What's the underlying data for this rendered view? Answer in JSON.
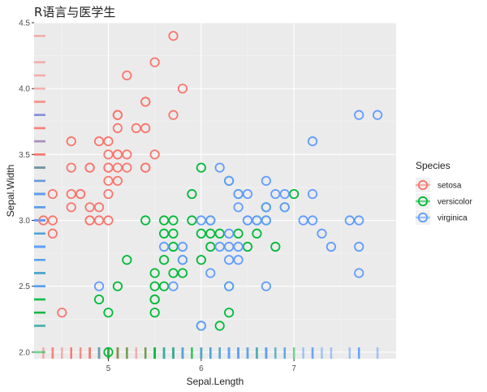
{
  "chart_data": {
    "type": "scatter",
    "title": "R语言与医学生",
    "xlabel": "Sepal.Length",
    "ylabel": "Sepal.Width",
    "xlim": [
      4.2,
      8.1
    ],
    "ylim": [
      1.95,
      4.5
    ],
    "x_ticks": [
      5,
      6,
      7
    ],
    "y_ticks": [
      2.0,
      2.5,
      3.0,
      3.5,
      4.0,
      4.5
    ],
    "x_tick_labels": [
      "5",
      "6",
      "7"
    ],
    "y_tick_labels": [
      "2.0",
      "2.5",
      "3.0",
      "3.5",
      "4.0",
      "4.5"
    ],
    "grid": true,
    "rug": true,
    "legend": {
      "title": "Species",
      "position": "right"
    },
    "colors": {
      "setosa": "#F8766D",
      "versicolor": "#00BA38",
      "virginica": "#619CFF"
    },
    "series": [
      {
        "name": "setosa",
        "points": [
          [
            4.3,
            3.0
          ],
          [
            4.4,
            3.0
          ],
          [
            4.4,
            2.9
          ],
          [
            4.4,
            3.2
          ],
          [
            4.5,
            2.3
          ],
          [
            4.6,
            3.1
          ],
          [
            4.6,
            3.4
          ],
          [
            4.6,
            3.6
          ],
          [
            4.6,
            3.2
          ],
          [
            4.7,
            3.2
          ],
          [
            4.7,
            3.2
          ],
          [
            4.8,
            3.4
          ],
          [
            4.8,
            3.0
          ],
          [
            4.8,
            3.4
          ],
          [
            4.8,
            3.1
          ],
          [
            4.8,
            3.0
          ],
          [
            4.9,
            3.0
          ],
          [
            4.9,
            3.1
          ],
          [
            4.9,
            3.6
          ],
          [
            5.0,
            3.6
          ],
          [
            5.0,
            3.4
          ],
          [
            5.0,
            3.0
          ],
          [
            5.0,
            3.4
          ],
          [
            5.0,
            3.2
          ],
          [
            5.0,
            3.5
          ],
          [
            5.0,
            3.3
          ],
          [
            5.1,
            3.5
          ],
          [
            5.1,
            3.5
          ],
          [
            5.1,
            3.8
          ],
          [
            5.1,
            3.7
          ],
          [
            5.1,
            3.3
          ],
          [
            5.1,
            3.4
          ],
          [
            5.1,
            3.8
          ],
          [
            5.1,
            3.8
          ],
          [
            5.2,
            3.5
          ],
          [
            5.2,
            3.4
          ],
          [
            5.2,
            4.1
          ],
          [
            5.3,
            3.7
          ],
          [
            5.4,
            3.9
          ],
          [
            5.4,
            3.7
          ],
          [
            5.4,
            3.9
          ],
          [
            5.4,
            3.4
          ],
          [
            5.4,
            3.4
          ],
          [
            5.5,
            4.2
          ],
          [
            5.5,
            3.5
          ],
          [
            5.7,
            4.4
          ],
          [
            5.7,
            3.8
          ],
          [
            5.8,
            4.0
          ]
        ]
      },
      {
        "name": "versicolor",
        "points": [
          [
            4.9,
            2.4
          ],
          [
            5.0,
            2.3
          ],
          [
            5.0,
            2.0
          ],
          [
            5.1,
            2.5
          ],
          [
            5.2,
            2.7
          ],
          [
            5.4,
            3.0
          ],
          [
            5.5,
            2.3
          ],
          [
            5.5,
            2.4
          ],
          [
            5.5,
            2.4
          ],
          [
            5.5,
            2.5
          ],
          [
            5.5,
            2.6
          ],
          [
            5.6,
            2.9
          ],
          [
            5.6,
            3.0
          ],
          [
            5.6,
            2.5
          ],
          [
            5.6,
            2.7
          ],
          [
            5.7,
            2.8
          ],
          [
            5.7,
            2.6
          ],
          [
            5.7,
            3.0
          ],
          [
            5.7,
            2.9
          ],
          [
            5.8,
            2.7
          ],
          [
            5.8,
            2.6
          ],
          [
            5.9,
            3.0
          ],
          [
            5.9,
            3.2
          ],
          [
            6.0,
            2.2
          ],
          [
            6.0,
            2.9
          ],
          [
            6.0,
            2.7
          ],
          [
            6.0,
            3.4
          ],
          [
            6.1,
            2.8
          ],
          [
            6.1,
            2.9
          ],
          [
            6.1,
            3.0
          ],
          [
            6.2,
            2.2
          ],
          [
            6.2,
            2.9
          ],
          [
            6.3,
            3.3
          ],
          [
            6.3,
            2.5
          ],
          [
            6.3,
            2.3
          ],
          [
            6.4,
            3.2
          ],
          [
            6.4,
            2.9
          ],
          [
            6.5,
            2.8
          ],
          [
            6.6,
            2.9
          ],
          [
            6.6,
            3.0
          ],
          [
            6.7,
            3.1
          ],
          [
            6.7,
            3.0
          ],
          [
            6.7,
            3.1
          ],
          [
            6.8,
            2.8
          ],
          [
            6.9,
            3.1
          ],
          [
            7.0,
            3.2
          ]
        ]
      },
      {
        "name": "virginica",
        "points": [
          [
            4.9,
            2.5
          ],
          [
            5.6,
            2.8
          ],
          [
            5.7,
            2.5
          ],
          [
            5.8,
            2.7
          ],
          [
            5.8,
            2.8
          ],
          [
            6.0,
            2.2
          ],
          [
            6.0,
            3.0
          ],
          [
            6.1,
            3.0
          ],
          [
            6.1,
            2.6
          ],
          [
            6.2,
            3.4
          ],
          [
            6.2,
            2.8
          ],
          [
            6.3,
            3.3
          ],
          [
            6.3,
            2.7
          ],
          [
            6.3,
            2.9
          ],
          [
            6.3,
            2.8
          ],
          [
            6.3,
            2.5
          ],
          [
            6.4,
            2.7
          ],
          [
            6.4,
            3.2
          ],
          [
            6.4,
            2.8
          ],
          [
            6.4,
            3.1
          ],
          [
            6.5,
            3.0
          ],
          [
            6.5,
            3.2
          ],
          [
            6.5,
            3.0
          ],
          [
            6.6,
            3.0
          ],
          [
            6.7,
            2.5
          ],
          [
            6.7,
            3.3
          ],
          [
            6.7,
            3.1
          ],
          [
            6.7,
            3.0
          ],
          [
            6.8,
            3.2
          ],
          [
            6.9,
            3.2
          ],
          [
            6.9,
            3.1
          ],
          [
            7.1,
            3.0
          ],
          [
            7.2,
            3.6
          ],
          [
            7.2,
            3.2
          ],
          [
            7.2,
            3.0
          ],
          [
            7.3,
            2.9
          ],
          [
            7.4,
            2.8
          ],
          [
            7.6,
            3.0
          ],
          [
            7.7,
            3.8
          ],
          [
            7.7,
            2.6
          ],
          [
            7.7,
            2.8
          ],
          [
            7.7,
            3.0
          ],
          [
            7.9,
            3.8
          ]
        ]
      }
    ]
  }
}
